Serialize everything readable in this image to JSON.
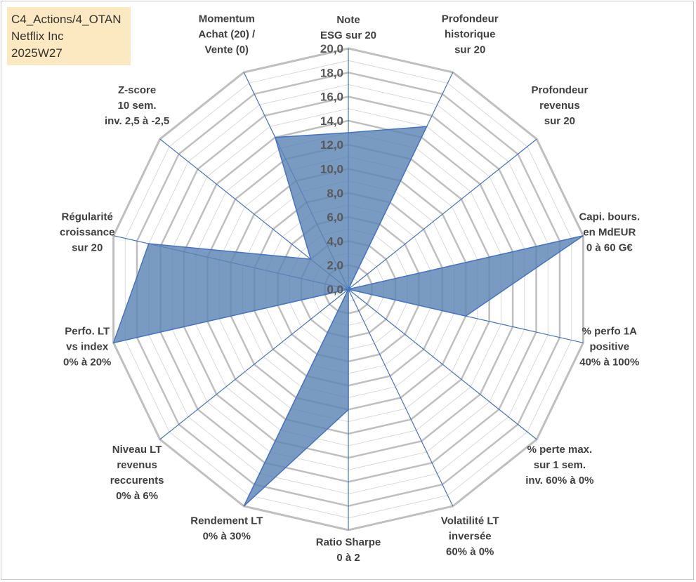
{
  "info": {
    "line1": "C4_Actions/4_OTAN",
    "line2": "Netflix Inc",
    "line3": "2025W27"
  },
  "chart_data": {
    "type": "radar",
    "title": "",
    "rmin": 0,
    "rmax": 20,
    "tick_step": 2,
    "tick_labels": [
      "0,0",
      "2,0",
      "4,0",
      "6,0",
      "8,0",
      "10,0",
      "12,0",
      "14,0",
      "16,0",
      "18,0",
      "20,0"
    ],
    "axes": [
      {
        "label": [
          "Note",
          "ESG sur 20"
        ]
      },
      {
        "label": [
          "Profondeur",
          "historique",
          "sur 20"
        ]
      },
      {
        "label": [
          "Profondeur",
          "revenus",
          "sur 20"
        ]
      },
      {
        "label": [
          "Capi. bours.",
          "en MdEUR",
          "0 à 60 G€"
        ]
      },
      {
        "label": [
          "% perfo 1A",
          "positive",
          "40% à 100%"
        ]
      },
      {
        "label": [
          "% perte max.",
          "sur 1 sem.",
          "inv. 60% à 0%"
        ]
      },
      {
        "label": [
          "Volatilité LT",
          "inversée",
          "60% à 0%"
        ]
      },
      {
        "label": [
          "Ratio Sharpe",
          "0 à 2"
        ]
      },
      {
        "label": [
          "Rendement LT",
          "0% à 30%"
        ]
      },
      {
        "label": [
          "Niveau LT",
          "revenus",
          "reccurents",
          "0% à 6%"
        ]
      },
      {
        "label": [
          "Perfo. LT",
          "vs index",
          "0% à 20%"
        ]
      },
      {
        "label": [
          "Régularité",
          "croissance",
          "sur 20"
        ]
      },
      {
        "label": [
          "Z-score",
          "10 sem.",
          "inv. 2,5 à -2,5"
        ]
      },
      {
        "label": [
          "Momentum",
          "Achat (20) /",
          "Vente (0)"
        ]
      }
    ],
    "series": [
      {
        "values": [
          13.0,
          15.0,
          0.0,
          20.0,
          10.0,
          0.0,
          0.0,
          10.0,
          20.0,
          0.0,
          20.0,
          17.0,
          4.0,
          14.0
        ]
      }
    ],
    "grid": true,
    "colors": {
      "fill": "#5b85b5",
      "line": "#4472c4",
      "grid": "#bfbfbf",
      "gridMinor": "#d9d9d9"
    }
  }
}
